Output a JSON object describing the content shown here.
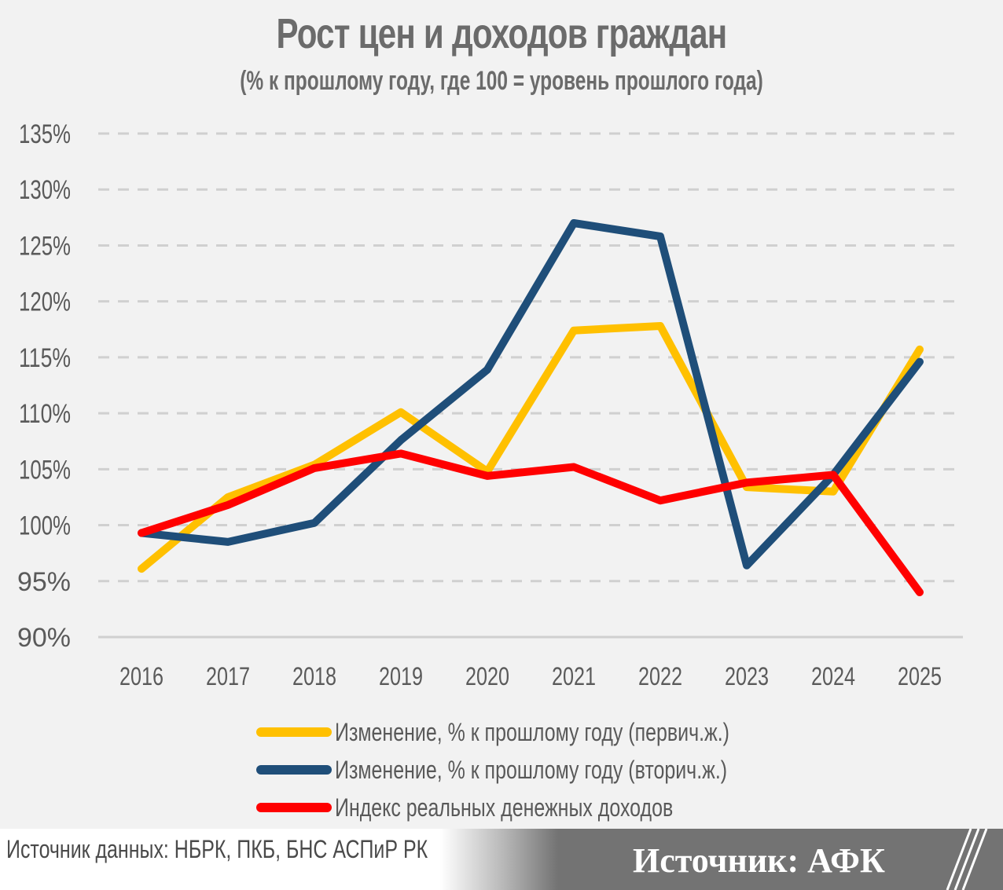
{
  "header": {
    "title": "Рост цен и доходов граждан",
    "subtitle": "(% к прошлому году, где 100 = уровень прошлого года)"
  },
  "axes": {
    "y_ticks": [
      "135%",
      "130%",
      "125%",
      "120%",
      "115%",
      "110%",
      "105%",
      "100%",
      "95%",
      "90%"
    ],
    "x_ticks": [
      "2016",
      "2017",
      "2018",
      "2019",
      "2020",
      "2021",
      "2022",
      "2023",
      "2024",
      "2025"
    ]
  },
  "legend": {
    "items": [
      {
        "label": "Изменение, % к прошлому году (первич.ж.)",
        "color": "#ffc000"
      },
      {
        "label": "Изменение, % к прошлому году (вторич.ж.)",
        "color": "#1f4e79"
      },
      {
        "label": "Индекс реальных денежных доходов",
        "color": "#ff0000"
      }
    ]
  },
  "footer": {
    "data_source": "Источник данных: НБРК, ПКБ, БНС АСПиР РК",
    "source": "Источник: АФК"
  },
  "chart_data": {
    "type": "line",
    "title": "Рост цен и доходов граждан",
    "subtitle": "(% к прошлому году, где 100 = уровень прошлого года)",
    "xlabel": "",
    "ylabel": "",
    "x": [
      "2016",
      "2017",
      "2018",
      "2019",
      "2020",
      "2021",
      "2022",
      "2023",
      "2024",
      "2025"
    ],
    "ylim": [
      90,
      135
    ],
    "y_ticks": [
      90,
      95,
      100,
      105,
      110,
      115,
      120,
      125,
      130,
      135
    ],
    "grid": "horizontal dashed",
    "legend_position": "bottom",
    "series": [
      {
        "name": "Изменение, % к прошлому году (первич.ж.)",
        "color": "#ffc000",
        "values": [
          96.1,
          102.5,
          105.4,
          110.1,
          104.8,
          117.4,
          117.8,
          103.4,
          103.0,
          115.7
        ]
      },
      {
        "name": "Изменение, % к прошлому году (вторич.ж.)",
        "color": "#1f4e79",
        "values": [
          99.3,
          98.5,
          100.2,
          107.6,
          113.9,
          127.0,
          125.8,
          96.4,
          104.5,
          114.6
        ]
      },
      {
        "name": "Индекс реальных денежных доходов",
        "color": "#ff0000",
        "values": [
          99.3,
          101.8,
          105.1,
          106.4,
          104.4,
          105.2,
          102.2,
          103.8,
          104.5,
          94.0
        ]
      }
    ]
  }
}
